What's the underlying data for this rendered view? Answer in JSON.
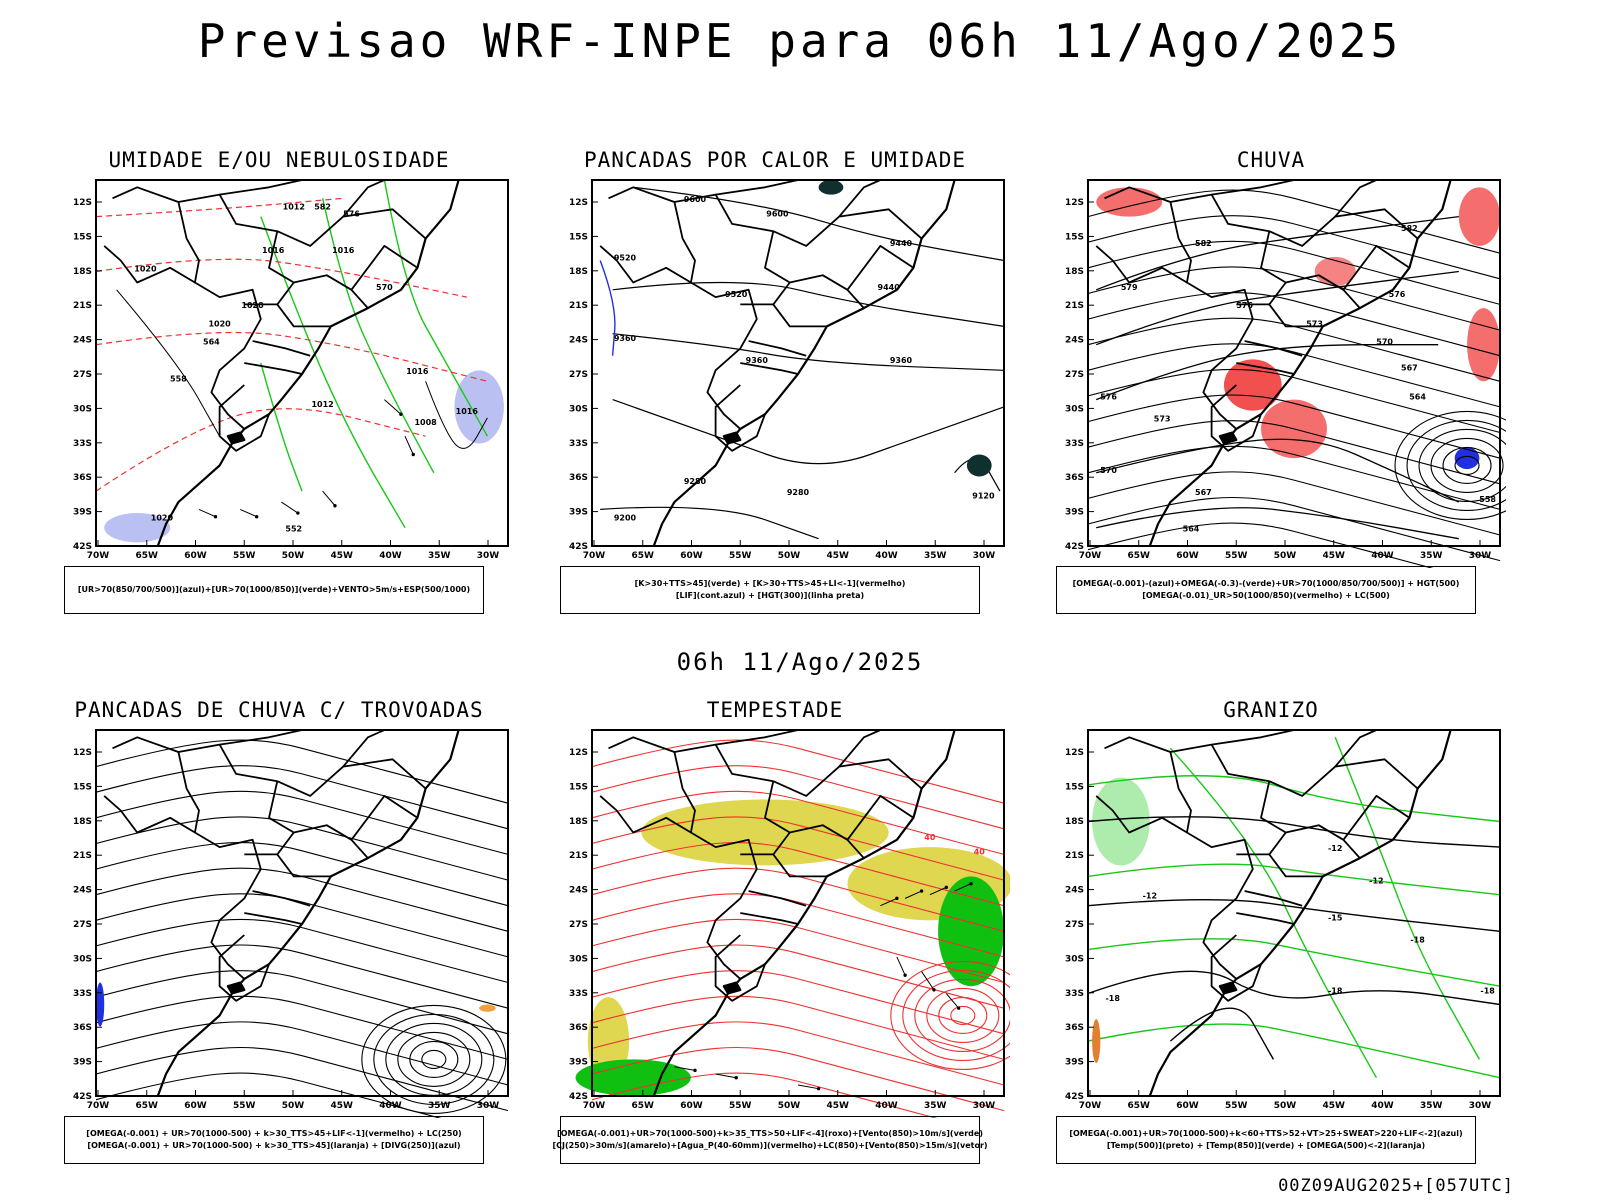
{
  "page": {
    "title": "Previsao WRF-INPE  para 06h 11/Ago/2025",
    "subtitle": "06h 11/Ago/2025",
    "footer": "00Z09AUG2025+[057UTC]"
  },
  "axes": {
    "lat_labels": [
      "12S",
      "15S",
      "18S",
      "21S",
      "24S",
      "27S",
      "30S",
      "33S",
      "36S",
      "39S",
      "42S"
    ],
    "lon_labels": [
      "70W",
      "65W",
      "60W",
      "55W",
      "50W",
      "45W",
      "40W",
      "35W",
      "30W"
    ]
  },
  "panels": [
    {
      "id": "umidade",
      "title": "UMIDADE E/OU NEBULOSIDADE",
      "legend": [
        "[UR>70(850/700/500)](azul)+[UR>70(1000/850)](verde)+VENTO>5m/s+ESP(500/1000)"
      ],
      "labels": [
        "1012",
        "1016",
        "1020",
        "1016",
        "1020",
        "1020",
        "1016",
        "1012",
        "1008",
        "1016",
        "1020",
        "552",
        "558",
        "564",
        "570",
        "576",
        "582"
      ],
      "colors": {
        "blue": "#aab0f0",
        "green": "#18c818",
        "red": "#f03030"
      }
    },
    {
      "id": "pancadas-calor",
      "title": "PANCADAS POR CALOR E UMIDADE",
      "legend": [
        "[K>30+TTS>45](verde) + [K>30+TTS>45+LI<-1](vermelho)",
        "[LIF](cont.azul) + [HGT(300)](linha preta)"
      ],
      "labels": [
        "9600",
        "9600",
        "9520",
        "9520",
        "9440",
        "9440",
        "9360",
        "9360",
        "9360",
        "9280",
        "9280",
        "9200",
        "9120"
      ],
      "colors": {
        "blue": "#2030e0",
        "red": "#f03030",
        "dark": "#103030"
      }
    },
    {
      "id": "chuva",
      "title": "CHUVA",
      "legend": [
        "[OMEGA(-0.001)-(azul)+OMEGA(-0.3)-(verde)+UR>70(1000/850/700/500)] + HGT(500)",
        "[OMEGA(-0.01)_UR>50(1000/850)(vermelho) + LC(500)"
      ],
      "labels": [
        "582",
        "576",
        "576",
        "573",
        "570",
        "567",
        "564",
        "579",
        "573",
        "576",
        "570",
        "567",
        "564",
        "558",
        "582"
      ],
      "colors": {
        "red": "#f03030",
        "blue": "#2030e0",
        "green": "#18c818"
      }
    },
    {
      "id": "trovoadas",
      "title": "PANCADAS DE CHUVA C/ TROVOADAS",
      "legend": [
        "[OMEGA(-0.001) + UR>70(1000-500) + k>30_TTS>45+LIF<-1](vermelho) + LC(250)",
        "[OMEGA(-0.001) + UR>70(1000-500) + k>30_TTS>45](laranja) + [DIVG(250)](azul)"
      ],
      "labels": [],
      "colors": {
        "blue": "#2030e0",
        "orange": "#f0a040"
      }
    },
    {
      "id": "tempestade",
      "title": "TEMPESTADE",
      "legend": [
        "[OMEGA(-0.001)+UR>70(1000-500)+k>35_TTS>50+LIF<-4](roxo)+[Vento(850)>10m/s](verde)",
        "[CJ(250)>30m/s](amarelo)+[Agua_P(40-60mm)](vermelho)+LC(850)+[Vento(850)>15m/s](vetor)"
      ],
      "labels": [
        "40",
        "40"
      ],
      "colors": {
        "yellow": "#d8d030",
        "green": "#10c010",
        "red": "#f03030"
      }
    },
    {
      "id": "granizo",
      "title": "GRANIZO",
      "legend": [
        "[OMEGA(-0.001)+UR>70(1000-500)+k<60+TTS>52+VT>25+SWEAT>220+LIF<-2](azul)",
        "[Temp(500)](preto) + [Temp(850)](verde) + [OMEGA(500)<-2](laranja)"
      ],
      "labels": [
        "-12",
        "-12",
        "-12",
        "-15",
        "-18",
        "-18",
        "-18",
        "-18"
      ],
      "colors": {
        "green": "#18c818",
        "orange": "#e08030"
      }
    }
  ]
}
